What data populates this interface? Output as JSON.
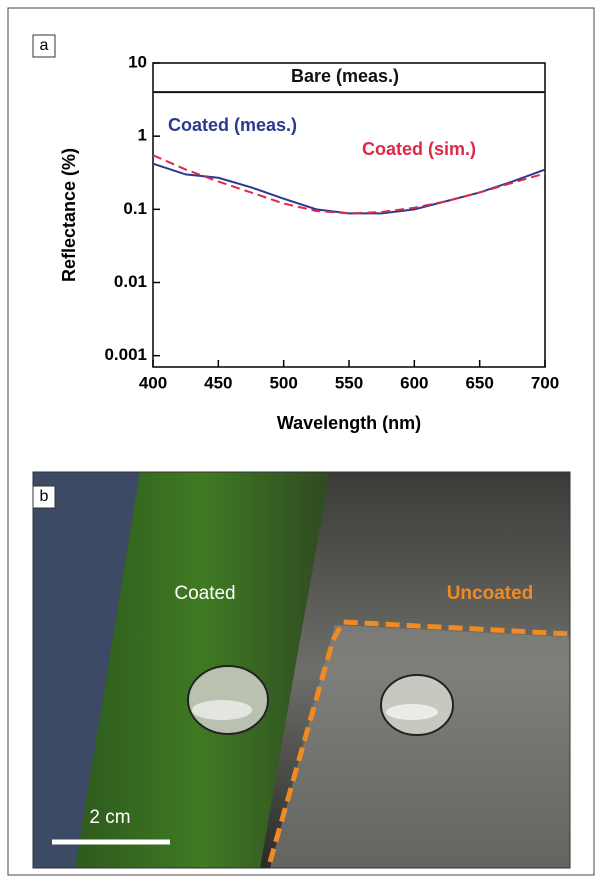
{
  "chart_data": {
    "type": "line",
    "xlabel": "Wavelength (nm)",
    "ylabel": "Reflectance (%)",
    "x": [
      400,
      425,
      450,
      475,
      500,
      525,
      550,
      575,
      600,
      625,
      650,
      675,
      700
    ],
    "series": [
      {
        "name": "Bare (meas.)",
        "color": "#111111",
        "style": "solid",
        "values": [
          4,
          4,
          4,
          4,
          4,
          4,
          4,
          4,
          4,
          4,
          4,
          4,
          4
        ]
      },
      {
        "name": "Coated (meas.)",
        "color": "#2b3a8f",
        "style": "solid",
        "values": [
          0.42,
          0.3,
          0.27,
          0.2,
          0.14,
          0.1,
          0.088,
          0.088,
          0.1,
          0.13,
          0.17,
          0.24,
          0.35
        ]
      },
      {
        "name": "Coated (sim.)",
        "color": "#e0284a",
        "style": "dashed",
        "values": [
          0.55,
          0.35,
          0.24,
          0.17,
          0.12,
          0.095,
          0.088,
          0.092,
          0.105,
          0.13,
          0.17,
          0.23,
          0.31
        ]
      }
    ],
    "xlim": [
      400,
      700
    ],
    "xticks": [
      400,
      450,
      500,
      550,
      600,
      650,
      700
    ],
    "ylim": [
      0.0007,
      10
    ],
    "yticks": [
      0.001,
      0.01,
      0.1,
      1,
      10
    ],
    "ylog": true
  },
  "panels": [
    "a",
    "b"
  ],
  "photo": {
    "coated_label": "Coated",
    "uncoated_label": "Uncoated",
    "scale_bar": "2 cm"
  }
}
